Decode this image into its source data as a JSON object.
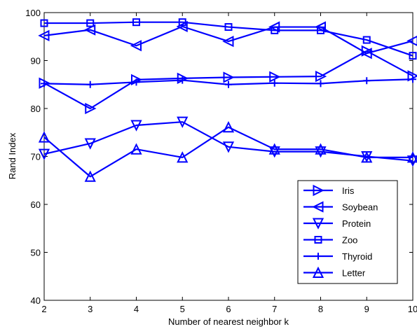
{
  "chart_data": {
    "type": "line",
    "xlabel": "Number of nearest neighbor k",
    "ylabel": "Rand Index",
    "xlim": [
      2,
      10
    ],
    "ylim": [
      40,
      100
    ],
    "xticks": [
      2,
      3,
      4,
      5,
      6,
      7,
      8,
      9,
      10
    ],
    "yticks": [
      40,
      50,
      60,
      70,
      80,
      90,
      100
    ],
    "grid": false,
    "legend_position": "bottom-right",
    "line_color": "#0000ff",
    "x": [
      2,
      3,
      4,
      5,
      6,
      7,
      8,
      9,
      10
    ],
    "series": [
      {
        "name": "Iris",
        "marker": "triangle-right",
        "values": [
          85.3,
          80.0,
          86.0,
          86.3,
          86.5,
          86.6,
          86.7,
          92.0,
          86.8
        ]
      },
      {
        "name": "Soybean",
        "marker": "triangle-left",
        "values": [
          95.2,
          96.4,
          93.1,
          97.1,
          94.0,
          97.0,
          97.0,
          91.5,
          94.1
        ]
      },
      {
        "name": "Protein",
        "marker": "triangle-down",
        "values": [
          70.5,
          72.7,
          76.5,
          77.2,
          72.0,
          71.0,
          71.0,
          70.0,
          69.1
        ]
      },
      {
        "name": "Zoo",
        "marker": "square",
        "values": [
          97.8,
          97.8,
          98.0,
          98.0,
          97.0,
          96.3,
          96.3,
          94.3,
          91.0
        ]
      },
      {
        "name": "Thyroid",
        "marker": "plus",
        "values": [
          85.2,
          85.0,
          85.5,
          85.9,
          85.0,
          85.3,
          85.2,
          85.8,
          86.1
        ]
      },
      {
        "name": "Letter",
        "marker": "triangle-up",
        "values": [
          74.0,
          65.8,
          71.5,
          69.8,
          76.1,
          71.5,
          71.5,
          69.8,
          69.8
        ]
      }
    ]
  }
}
